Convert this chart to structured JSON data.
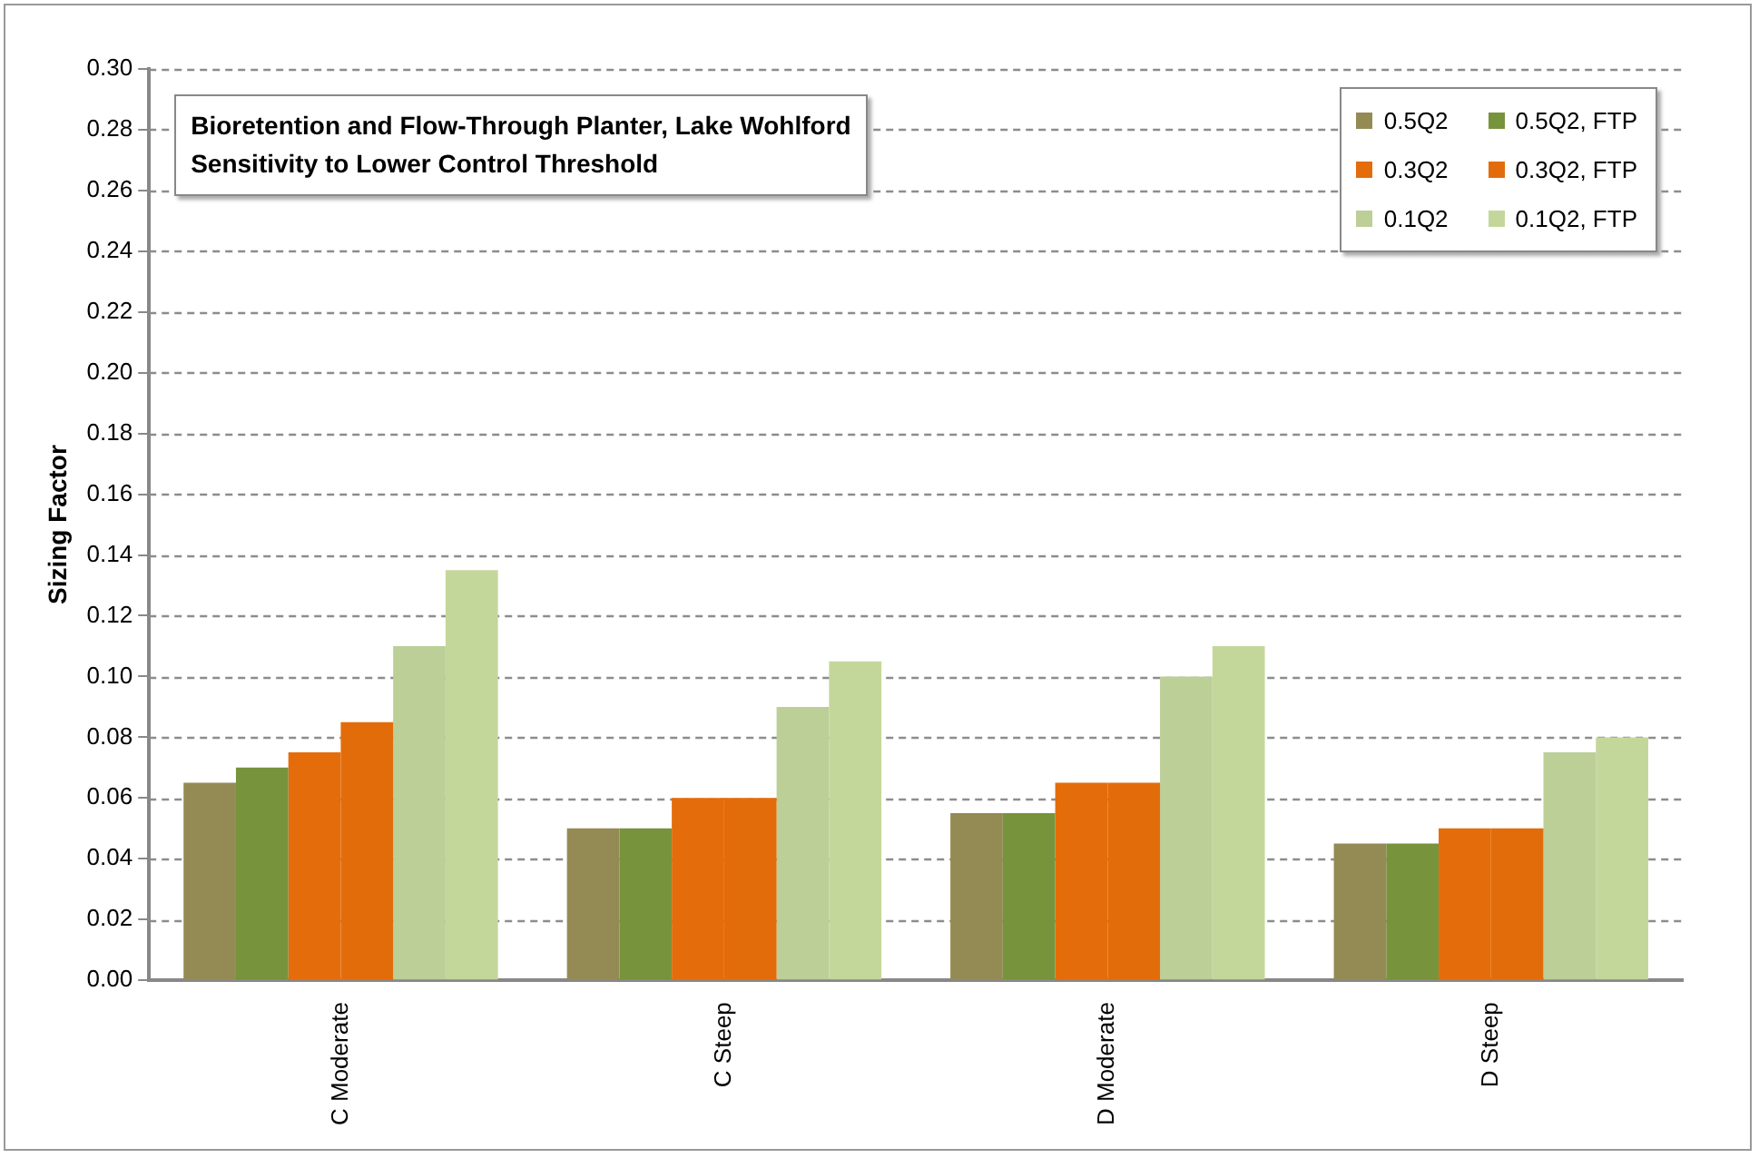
{
  "chart_data": {
    "type": "bar",
    "title": "Bioretention and Flow-Through Planter, Lake Wohlford",
    "subtitle": "Sensitivity to Lower Control Threshold",
    "ylabel": "Sizing Factor",
    "categories": [
      "C Moderate",
      "C Steep",
      "D Moderate",
      "D Steep"
    ],
    "series": [
      {
        "name": "0.5Q2",
        "color": "#948a54",
        "values": [
          0.065,
          0.05,
          0.055,
          0.045
        ]
      },
      {
        "name": "0.5Q2, FTP",
        "color": "#77933c",
        "values": [
          0.07,
          0.05,
          0.055,
          0.045
        ]
      },
      {
        "name": "0.3Q2",
        "color": "#e46c0a",
        "values": [
          0.075,
          0.06,
          0.065,
          0.05
        ]
      },
      {
        "name": "0.3Q2, FTP",
        "color": "#e36c0a",
        "values": [
          0.085,
          0.06,
          0.065,
          0.05
        ]
      },
      {
        "name": "0.1Q2",
        "color": "#bbcf97",
        "values": [
          0.11,
          0.09,
          0.1,
          0.075
        ]
      },
      {
        "name": "0.1Q2, FTP",
        "color": "#c4d79b",
        "values": [
          0.135,
          0.105,
          0.11,
          0.08
        ]
      }
    ],
    "ylim": [
      0,
      0.3
    ],
    "yticks": [
      {
        "value": 0,
        "label": "0.00"
      },
      {
        "value": 0.02,
        "label": "0.02"
      },
      {
        "value": 0.04,
        "label": "0.04"
      },
      {
        "value": 0.06,
        "label": "0.06"
      },
      {
        "value": 0.08,
        "label": "0.08"
      },
      {
        "value": 0.1,
        "label": "0.10"
      },
      {
        "value": 0.12,
        "label": "0.12"
      },
      {
        "value": 0.14,
        "label": "0.14"
      },
      {
        "value": 0.16,
        "label": "0.16"
      },
      {
        "value": 0.18,
        "label": "0.18"
      },
      {
        "value": 0.2,
        "label": "0.20"
      },
      {
        "value": 0.22,
        "label": "0.22"
      },
      {
        "value": 0.24,
        "label": "0.24"
      },
      {
        "value": 0.26,
        "label": "0.26"
      },
      {
        "value": 0.28,
        "label": "0.28"
      },
      {
        "value": 0.3,
        "label": "0.30"
      }
    ],
    "grid": "y",
    "legend": "top right"
  }
}
